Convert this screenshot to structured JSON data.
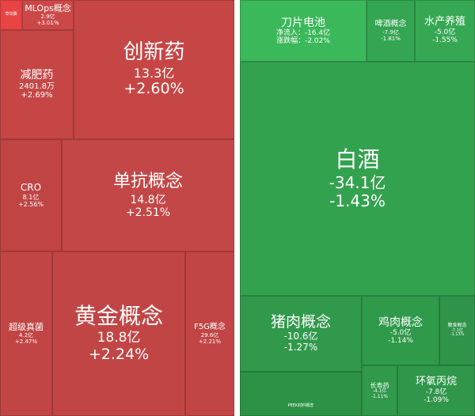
{
  "chart_data": {
    "type": "treemap",
    "groups": [
      {
        "name": "gainers",
        "color": "#c94848",
        "tiles": [
          {
            "name": "创新药",
            "flow": "13.3亿",
            "change": "+2.60%",
            "flow_yi": 13.3,
            "change_pct": 2.6
          },
          {
            "name": "减肥药",
            "flow": "2401.8万",
            "change": "+2.69%",
            "flow_yi": 0.24,
            "change_pct": 2.69
          },
          {
            "name": "MLOps概念",
            "flow": "2.9亿",
            "change": "+3.01%",
            "flow_yi": 2.9,
            "change_pct": 3.01
          },
          {
            "name": "草甘膦",
            "flow": "",
            "change": "",
            "flow_yi": null,
            "change_pct": null
          },
          {
            "name": "CRO",
            "flow": "8.1亿",
            "change": "+2.56%",
            "flow_yi": 8.1,
            "change_pct": 2.56
          },
          {
            "name": "单抗概念",
            "flow": "14.8亿",
            "change": "+2.51%",
            "flow_yi": 14.8,
            "change_pct": 2.51
          },
          {
            "name": "超级真菌",
            "flow": "4.2亿",
            "change": "+2.47%",
            "flow_yi": 4.2,
            "change_pct": 2.47
          },
          {
            "name": "黄金概念",
            "flow": "18.8亿",
            "change": "+2.24%",
            "flow_yi": 18.8,
            "change_pct": 2.24
          },
          {
            "name": "F5G概念",
            "flow": "29.6亿",
            "change": "+2.21%",
            "flow_yi": 29.6,
            "change_pct": 2.21
          }
        ]
      },
      {
        "name": "losers",
        "color": "#35a451",
        "tiles": [
          {
            "name": "刀片电池",
            "flow": "净流入：-16.4亿",
            "change": "涨跌幅：-2.02%",
            "flow_yi": -16.4,
            "change_pct": -2.02
          },
          {
            "name": "啤酒概念",
            "flow": "-7.9亿",
            "change": "-1.81%",
            "flow_yi": -7.9,
            "change_pct": -1.81
          },
          {
            "name": "水产养殖",
            "flow": "-5.0亿",
            "change": "-1.55%",
            "flow_yi": -5.0,
            "change_pct": -1.55
          },
          {
            "name": "白酒",
            "flow": "-34.1亿",
            "change": "-1.43%",
            "flow_yi": -34.1,
            "change_pct": -1.43
          },
          {
            "name": "猪肉概念",
            "flow": "-10.6亿",
            "change": "-1.27%",
            "flow_yi": -10.6,
            "change_pct": -1.27
          },
          {
            "name": "PEEK材料概念",
            "flow": "",
            "change": "",
            "flow_yi": null,
            "change_pct": null
          },
          {
            "name": "鸡肉概念",
            "flow": "-5.0亿",
            "change": "-1.14%",
            "flow_yi": -5.0,
            "change_pct": -1.14
          },
          {
            "name": "粮食概念",
            "flow": "-7.1亿",
            "change": "-1.13%",
            "flow_yi": -7.1,
            "change_pct": -1.13
          },
          {
            "name": "长寿药",
            "flow": "-4.1亿",
            "change": "-1.11%",
            "flow_yi": -4.1,
            "change_pct": -1.11
          },
          {
            "name": "环氧丙烷",
            "flow": "-7.8亿",
            "change": "-1.09%",
            "flow_yi": -7.8,
            "change_pct": -1.09
          }
        ]
      }
    ],
    "title": "",
    "xlabel": "",
    "ylabel": ""
  }
}
